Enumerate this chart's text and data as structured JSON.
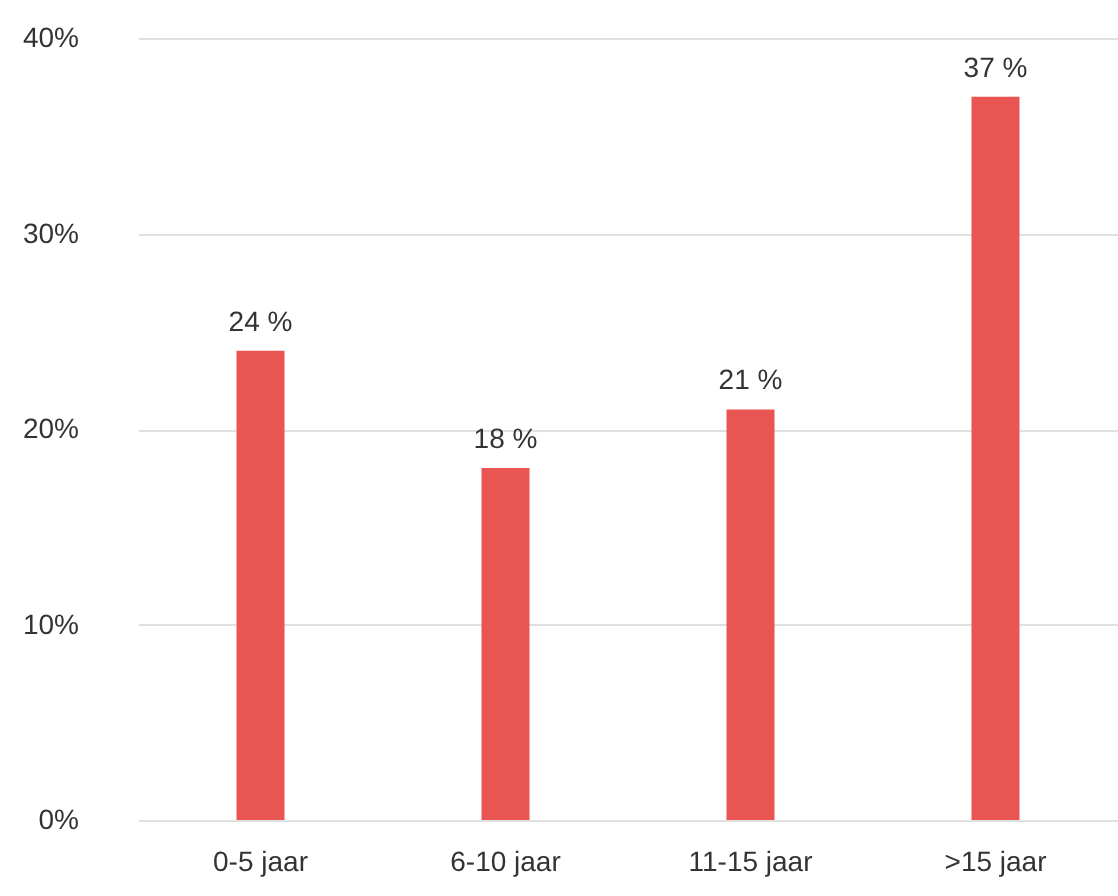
{
  "chart_data": {
    "type": "bar",
    "categories": [
      "0-5 jaar",
      "6-10 jaar",
      "11-15 jaar",
      ">15 jaar"
    ],
    "values": [
      24,
      18,
      21,
      37
    ],
    "value_labels": [
      "24 %",
      "18 %",
      "21 %",
      "37 %"
    ],
    "color": "#e95552",
    "ylim": [
      0,
      40
    ],
    "yticks": [
      {
        "value": 0,
        "label": "0%"
      },
      {
        "value": 10,
        "label": "10%"
      },
      {
        "value": 20,
        "label": "20%"
      },
      {
        "value": 30,
        "label": "30%"
      },
      {
        "value": 40,
        "label": "40%"
      }
    ],
    "grid": "y"
  }
}
